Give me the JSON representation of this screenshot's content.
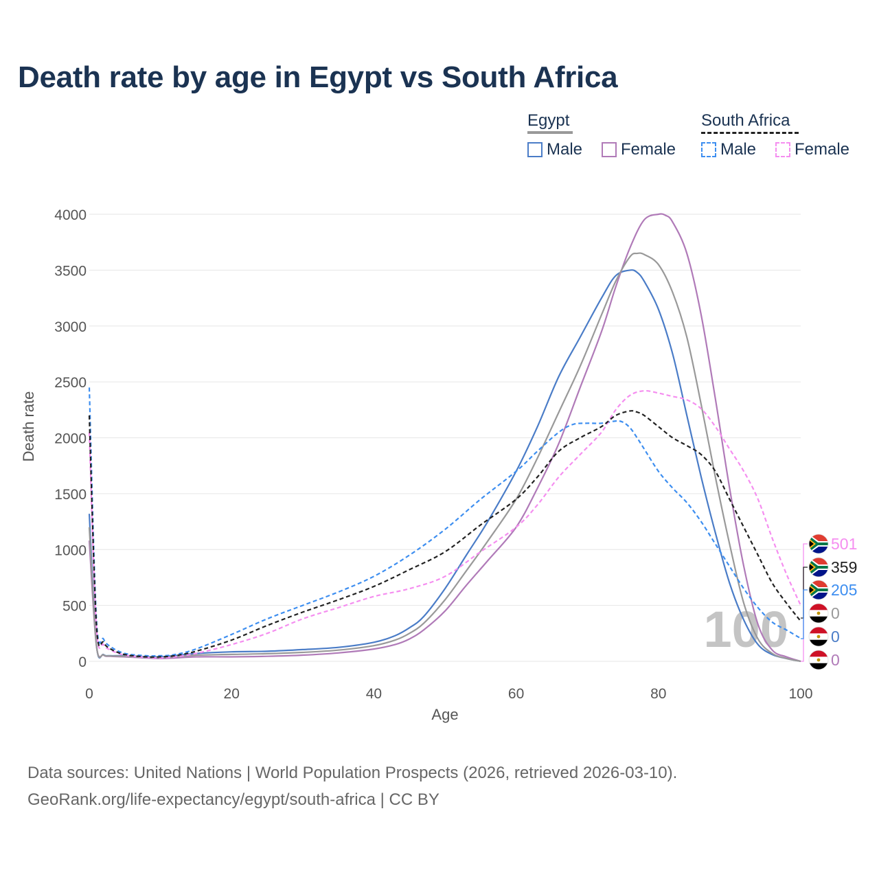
{
  "title": "Death rate by age in Egypt vs South Africa",
  "legend": {
    "egypt": {
      "heading": "Egypt",
      "male": "Male",
      "female": "Female"
    },
    "south_africa": {
      "heading": "South Africa",
      "male": "Male",
      "female": "Female"
    }
  },
  "colors": {
    "egypt_male": "#4a7cc7",
    "egypt_female": "#b07ab8",
    "egypt_total": "#999999",
    "sa_male": "#3d8ef0",
    "sa_female": "#f58ef0",
    "sa_total": "#222222",
    "title": "#1b3352"
  },
  "watermark": "100",
  "end_labels": [
    {
      "country": "South Africa",
      "series": "Female",
      "value": "501",
      "color": "#f58ef0"
    },
    {
      "country": "South Africa",
      "series": "Total",
      "value": "359",
      "color": "#222222"
    },
    {
      "country": "South Africa",
      "series": "Male",
      "value": "205",
      "color": "#3d8ef0"
    },
    {
      "country": "Egypt",
      "series": "Total",
      "value": "0",
      "color": "#999999"
    },
    {
      "country": "Egypt",
      "series": "Male",
      "value": "0",
      "color": "#4a7cc7"
    },
    {
      "country": "Egypt",
      "series": "Female",
      "value": "0",
      "color": "#b07ab8"
    }
  ],
  "source": {
    "line1": "Data sources: United Nations | World Population Prospects (2026, retrieved 2026-03-10).",
    "line2": "GeoRank.org/life-expectancy/egypt/south-africa | CC BY"
  },
  "chart_data": {
    "type": "line",
    "title": "Death rate by age in Egypt vs South Africa",
    "xlabel": "Age",
    "ylabel": "Death rate",
    "xlim": [
      0,
      100
    ],
    "ylim": [
      0,
      4000
    ],
    "xticks": [
      0,
      20,
      40,
      60,
      80,
      100
    ],
    "yticks": [
      0,
      500,
      1000,
      1500,
      2000,
      2500,
      3000,
      3500,
      4000
    ],
    "grid": true,
    "series": [
      {
        "name": "Egypt Male",
        "key": "egypt_male",
        "dash": false,
        "x": [
          0,
          1,
          2,
          3,
          5,
          8,
          10,
          12,
          15,
          20,
          25,
          30,
          35,
          40,
          43,
          45,
          47,
          50,
          53,
          56,
          60,
          63,
          66,
          69,
          72,
          74,
          76,
          77,
          78,
          80,
          82,
          84,
          86,
          88,
          90,
          92,
          94,
          96,
          98,
          100
        ],
        "y": [
          1320,
          150,
          60,
          50,
          50,
          40,
          40,
          50,
          70,
          85,
          90,
          105,
          125,
          170,
          230,
          300,
          400,
          650,
          950,
          1250,
          1700,
          2100,
          2550,
          2900,
          3250,
          3450,
          3500,
          3480,
          3400,
          3150,
          2750,
          2200,
          1650,
          1150,
          700,
          370,
          150,
          60,
          25,
          0
        ]
      },
      {
        "name": "Egypt Female",
        "key": "egypt_female",
        "dash": false,
        "x": [
          0,
          1,
          2,
          3,
          5,
          8,
          10,
          12,
          15,
          20,
          25,
          30,
          35,
          40,
          43,
          45,
          47,
          50,
          53,
          56,
          60,
          63,
          66,
          69,
          72,
          74,
          76,
          78,
          80,
          81,
          82,
          84,
          86,
          88,
          90,
          92,
          94,
          96,
          98,
          100
        ],
        "y": [
          1080,
          140,
          55,
          45,
          40,
          30,
          25,
          30,
          40,
          40,
          45,
          55,
          75,
          110,
          150,
          200,
          280,
          450,
          680,
          900,
          1200,
          1550,
          1950,
          2450,
          2950,
          3350,
          3700,
          3950,
          4000,
          3990,
          3930,
          3650,
          3100,
          2350,
          1550,
          850,
          330,
          100,
          40,
          0
        ]
      },
      {
        "name": "Egypt Total",
        "key": "egypt_total",
        "dash": false,
        "x": [
          0,
          1,
          2,
          3,
          5,
          8,
          10,
          12,
          15,
          20,
          25,
          30,
          35,
          40,
          43,
          45,
          47,
          50,
          53,
          56,
          60,
          63,
          66,
          69,
          72,
          74,
          76,
          77,
          78,
          80,
          82,
          84,
          86,
          88,
          90,
          92,
          94,
          96,
          98,
          100
        ],
        "y": [
          1200,
          145,
          58,
          48,
          45,
          35,
          32,
          40,
          55,
          62,
          68,
          80,
          100,
          140,
          190,
          250,
          340,
          550,
          810,
          1075,
          1450,
          1820,
          2230,
          2640,
          3100,
          3400,
          3620,
          3650,
          3640,
          3550,
          3300,
          2900,
          2300,
          1650,
          1050,
          520,
          200,
          70,
          25,
          0
        ]
      },
      {
        "name": "South Africa Male",
        "key": "sa_male",
        "dash": true,
        "x": [
          0,
          1,
          2,
          3,
          5,
          8,
          10,
          12,
          15,
          20,
          25,
          30,
          35,
          40,
          45,
          50,
          55,
          60,
          63,
          66,
          68,
          70,
          72,
          74,
          75,
          76,
          77,
          78,
          80,
          82,
          84,
          86,
          88,
          90,
          92,
          94,
          96,
          98,
          100
        ],
        "y": [
          2450,
          380,
          200,
          130,
          70,
          50,
          50,
          60,
          110,
          240,
          380,
          500,
          620,
          760,
          950,
          1180,
          1450,
          1700,
          1880,
          2050,
          2120,
          2130,
          2130,
          2150,
          2140,
          2090,
          2000,
          1900,
          1700,
          1550,
          1420,
          1250,
          1050,
          850,
          650,
          480,
          350,
          280,
          205
        ]
      },
      {
        "name": "South Africa Female",
        "key": "sa_female",
        "dash": true,
        "x": [
          0,
          1,
          2,
          3,
          5,
          8,
          10,
          12,
          15,
          20,
          25,
          30,
          35,
          40,
          45,
          50,
          55,
          60,
          63,
          66,
          69,
          72,
          74,
          76,
          78,
          80,
          82,
          84,
          86,
          88,
          90,
          92,
          94,
          96,
          98,
          100
        ],
        "y": [
          2050,
          300,
          150,
          100,
          55,
          35,
          30,
          40,
          70,
          150,
          250,
          380,
          480,
          580,
          650,
          760,
          980,
          1200,
          1400,
          1650,
          1850,
          2050,
          2250,
          2380,
          2420,
          2400,
          2370,
          2340,
          2260,
          2100,
          1900,
          1700,
          1450,
          1100,
          780,
          501
        ]
      },
      {
        "name": "South Africa Total",
        "key": "sa_total",
        "dash": true,
        "x": [
          0,
          1,
          2,
          3,
          5,
          8,
          10,
          12,
          15,
          20,
          25,
          30,
          35,
          40,
          45,
          50,
          55,
          60,
          63,
          66,
          69,
          72,
          74,
          76,
          77,
          78,
          80,
          82,
          84,
          86,
          88,
          90,
          92,
          94,
          96,
          98,
          100
        ],
        "y": [
          2200,
          330,
          170,
          110,
          60,
          40,
          40,
          50,
          90,
          190,
          320,
          440,
          550,
          670,
          820,
          980,
          1220,
          1450,
          1650,
          1880,
          2000,
          2100,
          2200,
          2240,
          2230,
          2200,
          2100,
          2000,
          1930,
          1850,
          1700,
          1450,
          1200,
          950,
          700,
          520,
          359
        ]
      }
    ]
  }
}
